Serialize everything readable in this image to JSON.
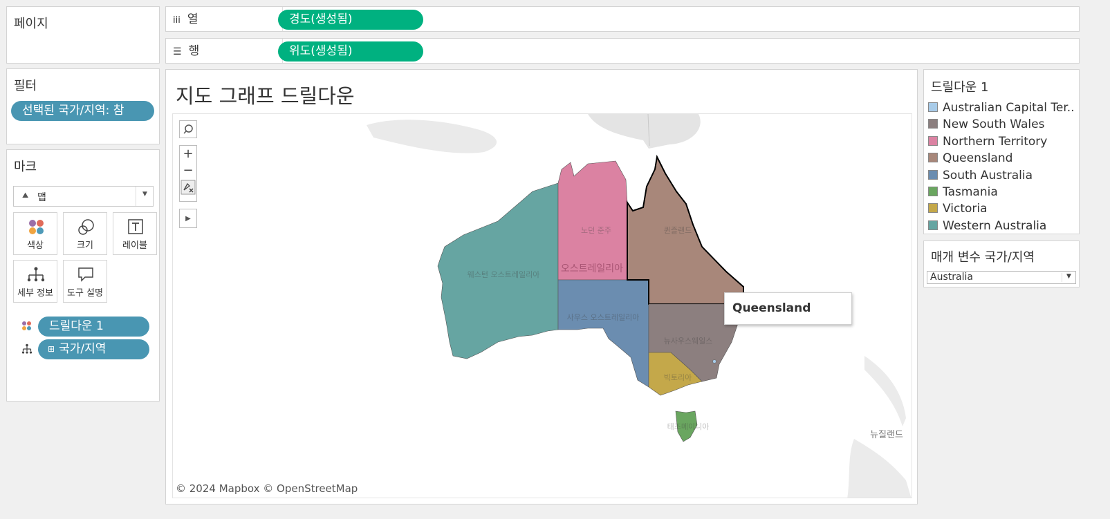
{
  "pages_card": {
    "title": "페이지"
  },
  "columns_shelf": {
    "label": "열",
    "icon": "columns-icon",
    "pill": "경도(생성됨)"
  },
  "rows_shelf": {
    "label": "행",
    "icon": "rows-icon",
    "pill": "위도(생성됨)"
  },
  "filters_card": {
    "title": "필터",
    "pill": "선택된 국가/지역: 참"
  },
  "marks_card": {
    "title": "마크",
    "mark_type": "맵",
    "buttons": {
      "color": "색상",
      "size": "크기",
      "label": "레이블",
      "detail": "세부 정보",
      "tooltip": "도구 설명"
    },
    "pills": [
      {
        "label": "드릴다운 1",
        "icon": "color-icon"
      },
      {
        "label": "국가/지역",
        "icon": "detail-icon"
      }
    ]
  },
  "viz": {
    "title": "지도 그래프 드릴다운",
    "tooltip": "Queensland",
    "attribution": "© 2024 Mapbox © OpenStreetMap",
    "map_labels": {
      "center": "오스트레일리아",
      "new_zealand": "뉴질랜드",
      "western_australia": "웨스턴 오스트레일리아",
      "northern_territory": "노던 준주",
      "queensland": "퀸즐랜드",
      "south_australia": "사우스 오스트레일리아",
      "new_south_wales": "뉴사우스웨일스",
      "victoria": "빅토리아",
      "tasmania": "태즈메이니아"
    }
  },
  "legend": {
    "title": "드릴다운 1",
    "items": [
      {
        "label": "Australian Capital Ter..",
        "color": "#a8cbe8"
      },
      {
        "label": "New South Wales",
        "color": "#8c7f7f"
      },
      {
        "label": "Northern Territory",
        "color": "#db82a2"
      },
      {
        "label": "Queensland",
        "color": "#a8877a"
      },
      {
        "label": "South Australia",
        "color": "#6b8db0"
      },
      {
        "label": "Tasmania",
        "color": "#6aa660"
      },
      {
        "label": "Victoria",
        "color": "#c4a84a"
      },
      {
        "label": "Western Australia",
        "color": "#66a5a2"
      }
    ]
  },
  "parameter": {
    "title": "매개 변수 국가/지역",
    "value": "Australia"
  }
}
